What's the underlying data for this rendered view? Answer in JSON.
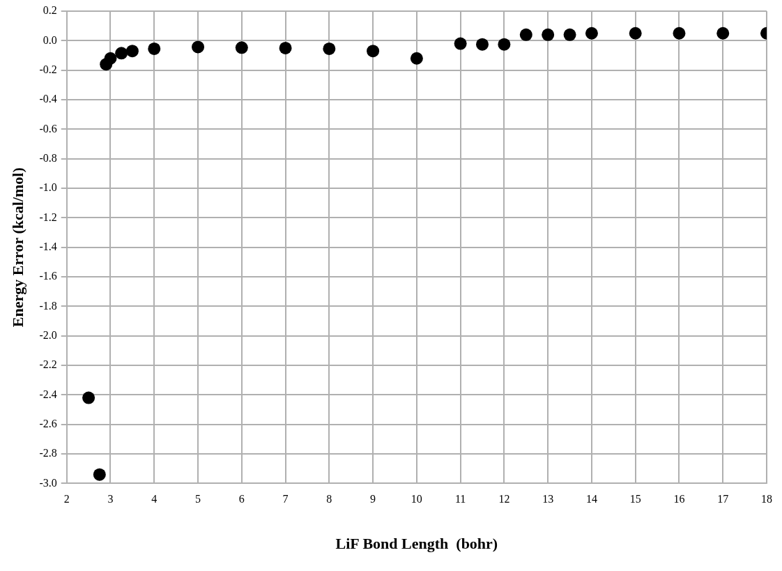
{
  "chart_data": {
    "type": "scatter",
    "xlabel": "LiF Bond Length  (bohr)",
    "ylabel": "Energy Error (kcal/mol)",
    "x": [
      2.5,
      2.75,
      2.9,
      3.0,
      3.25,
      3.5,
      4,
      5,
      6,
      7,
      8,
      9,
      10,
      11,
      11.5,
      12,
      12.5,
      13,
      13.5,
      14,
      15,
      16,
      17,
      18
    ],
    "series": [
      {
        "color": "#000000",
        "values": [
          -2.42,
          -2.94,
          -0.16,
          -0.12,
          -0.085,
          -0.07,
          -0.055,
          -0.043,
          -0.047,
          -0.05,
          -0.055,
          -0.07,
          -0.12,
          -0.02,
          -0.025,
          -0.025,
          0.04,
          0.04,
          0.04,
          0.05,
          0.05,
          0.05,
          0.05,
          0.05
        ]
      }
    ],
    "xlim": [
      2,
      18
    ],
    "xticks": [
      2,
      3,
      4,
      5,
      6,
      7,
      8,
      9,
      10,
      11,
      12,
      13,
      14,
      15,
      16,
      17,
      18
    ],
    "ylim": [
      -3.0,
      0.2
    ],
    "yticks": [
      {
        "value": -3.0,
        "label": "-3.0"
      },
      {
        "value": -2.8,
        "label": "-2.8"
      },
      {
        "value": -2.6,
        "label": "-2.6"
      },
      {
        "value": -2.4,
        "label": "-2.4"
      },
      {
        "value": -2.2,
        "label": "-2.2"
      },
      {
        "value": -2.0,
        "label": "-2.0"
      },
      {
        "value": -1.8,
        "label": "-1.8"
      },
      {
        "value": -1.6,
        "label": "-1.6"
      },
      {
        "value": -1.4,
        "label": "-1.4"
      },
      {
        "value": -1.2,
        "label": "-1.2"
      },
      {
        "value": -1.0,
        "label": "-1.0"
      },
      {
        "value": -0.8,
        "label": "-0.8"
      },
      {
        "value": -0.6,
        "label": "-0.6"
      },
      {
        "value": -0.4,
        "label": "-0.4"
      },
      {
        "value": -0.2,
        "label": "-0.2"
      },
      {
        "value": 0.0,
        "label": "0.0"
      },
      {
        "value": 0.2,
        "label": "0.2"
      }
    ],
    "grid": true,
    "legend": false,
    "marker": "circle"
  }
}
